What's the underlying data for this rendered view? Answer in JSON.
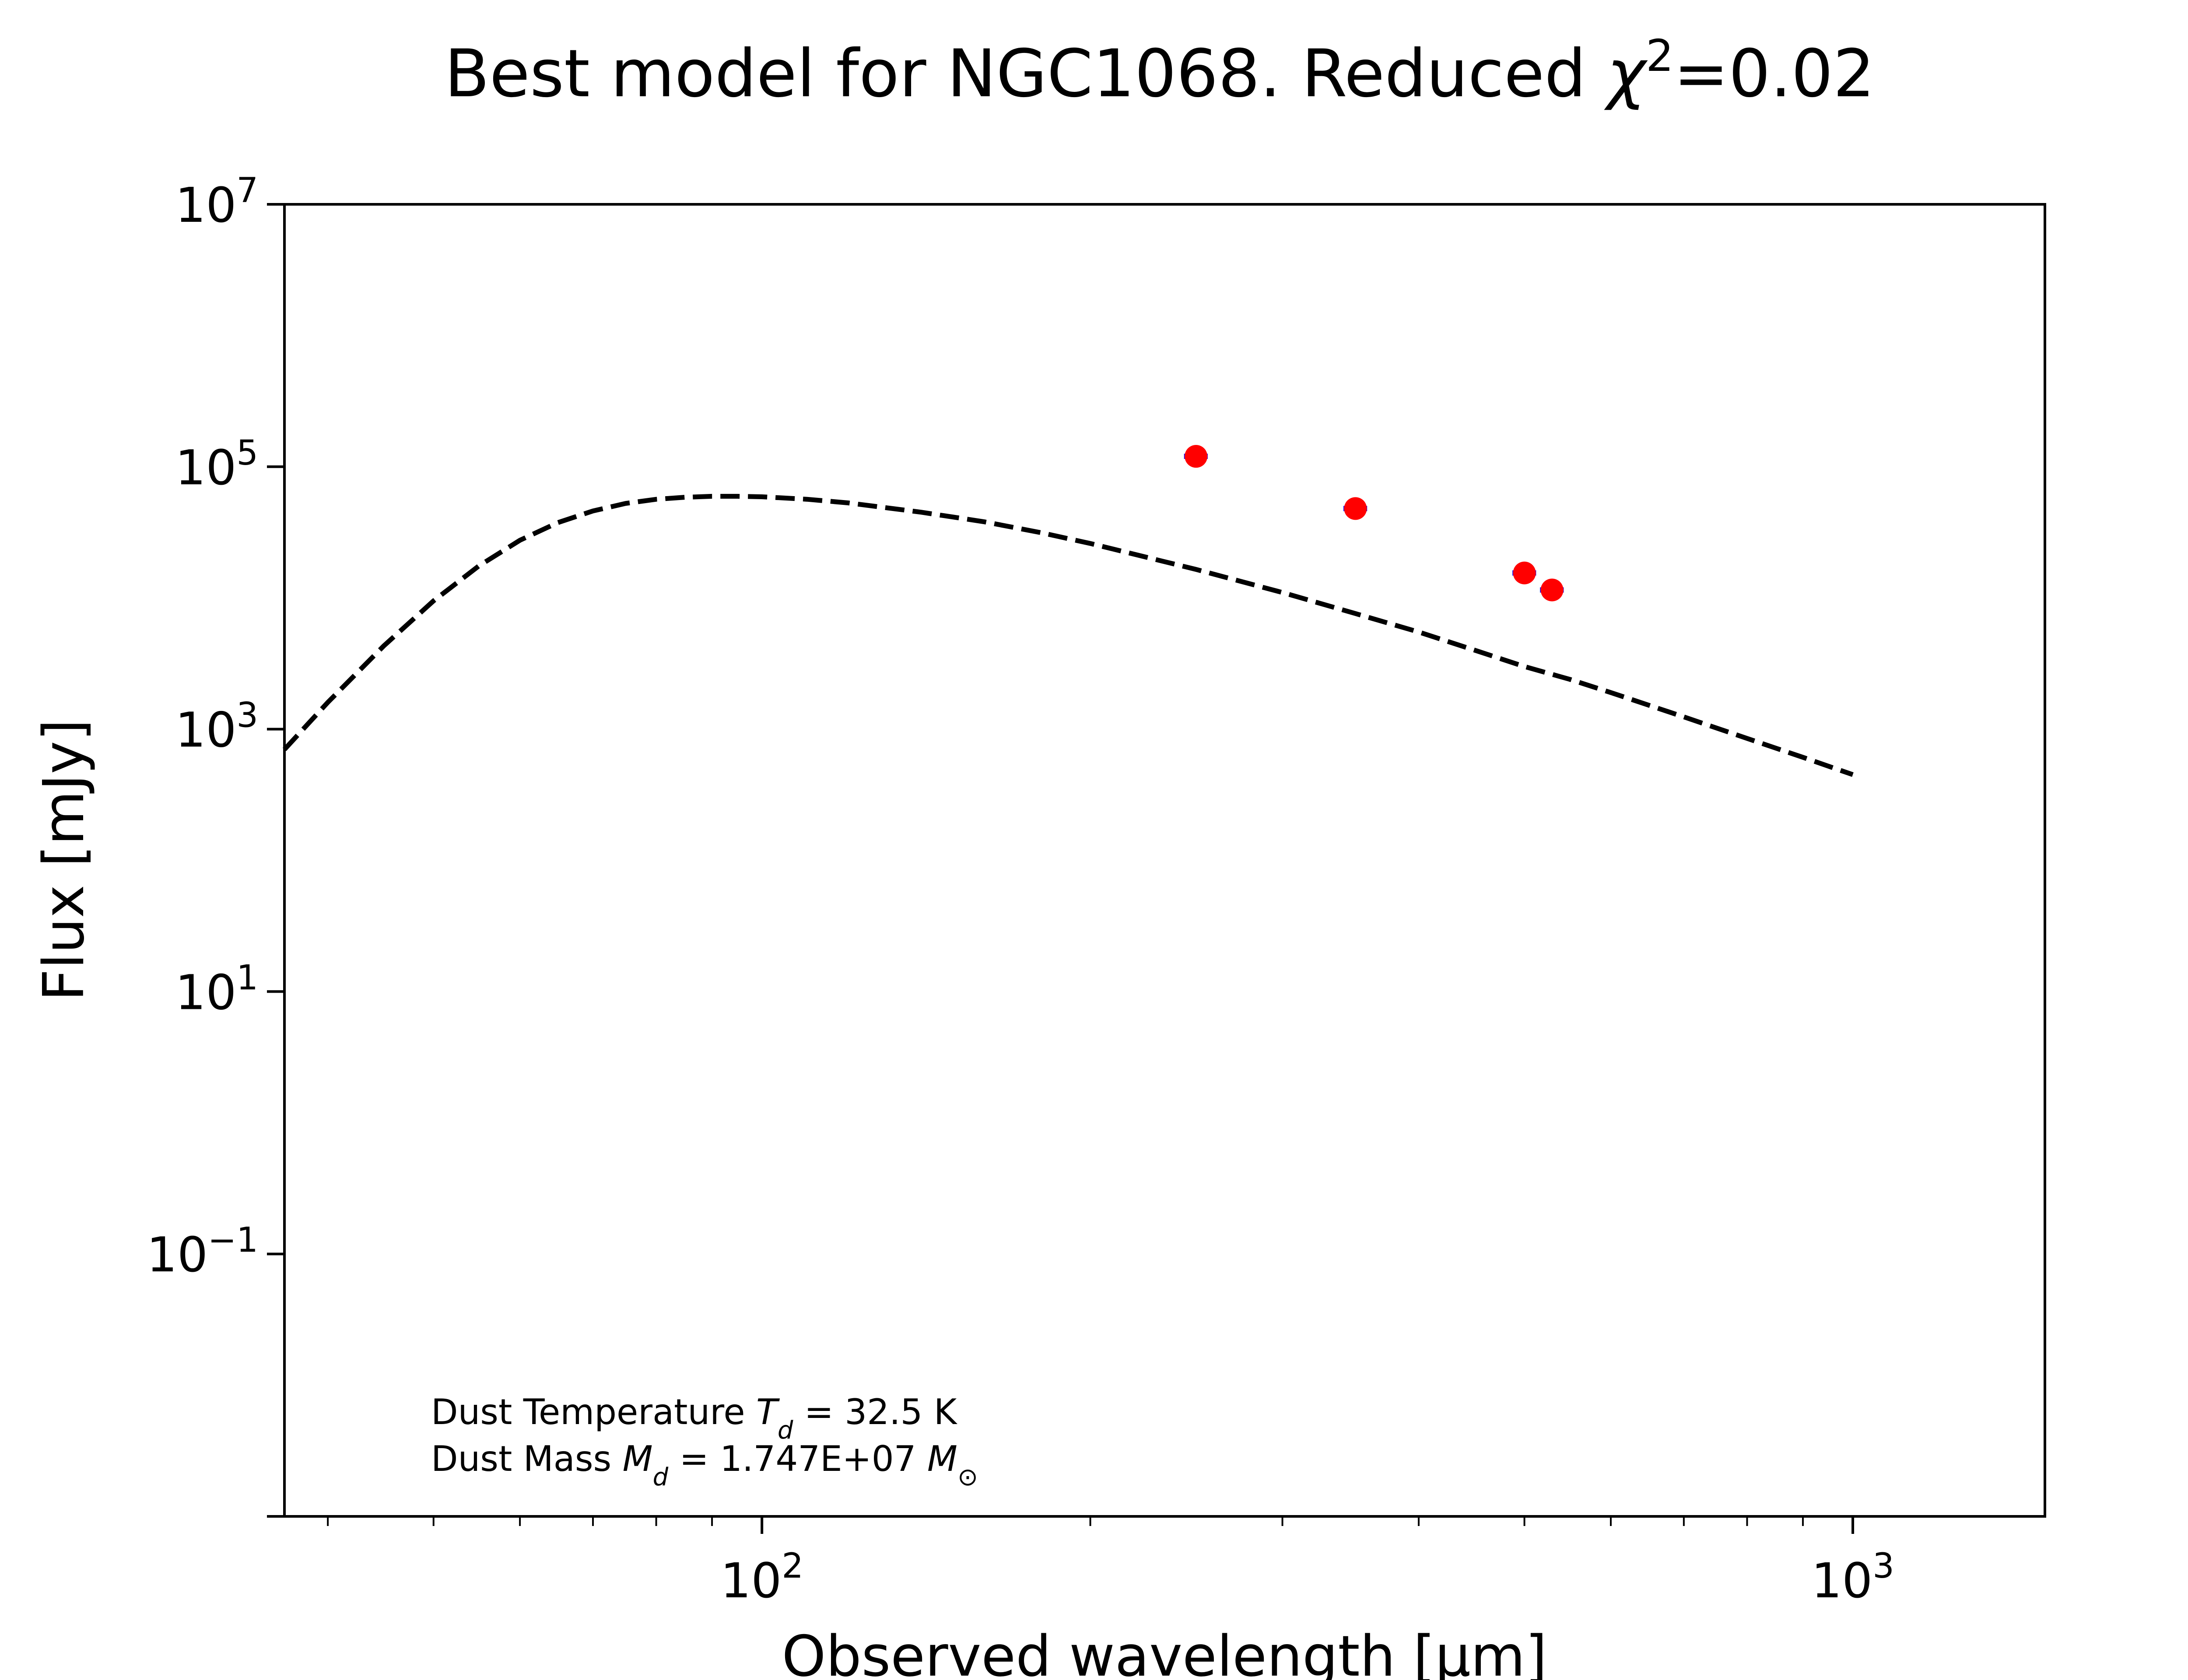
{
  "chart_data": {
    "type": "scatter",
    "title_prefix": "Best model for NGC1068. Reduced ",
    "title_chi": "χ",
    "title_exp": "2",
    "title_suffix": "=0.02",
    "xlabel": "Observed wavelength [μm]",
    "ylabel": "Flux [mJy]",
    "xscale": "log",
    "yscale": "log",
    "xlim": [
      36.5,
      1500
    ],
    "ylim": [
      0.001,
      10000000
    ],
    "xticks": [
      {
        "value": 100,
        "base": "10",
        "exp": "2"
      },
      {
        "value": 1000,
        "base": "10",
        "exp": "3"
      }
    ],
    "yticks": [
      {
        "value": 0.1,
        "base": "10",
        "exp": "−1"
      },
      {
        "value": 10,
        "base": "10",
        "exp": "1"
      },
      {
        "value": 1000,
        "base": "10",
        "exp": "3"
      },
      {
        "value": 100000,
        "base": "10",
        "exp": "5"
      },
      {
        "value": 10000000,
        "base": "10",
        "exp": "7"
      }
    ],
    "grid": false,
    "series": [
      {
        "type": "line",
        "style": "dashed",
        "color": "#000000",
        "x": [
          36.5,
          40,
          45,
          50,
          55,
          60,
          65,
          70,
          75,
          80,
          85,
          90,
          95,
          100,
          110,
          120,
          140,
          160,
          180,
          200,
          250,
          300,
          350,
          400,
          450,
          500,
          550,
          600,
          700,
          800,
          900,
          1000
        ],
        "y": [
          700,
          1600,
          4300,
          9500,
          17500,
          27500,
          37500,
          46000,
          52500,
          56500,
          58500,
          59500,
          59500,
          59000,
          56500,
          53000,
          45000,
          38000,
          31500,
          26000,
          16500,
          11000,
          7600,
          5500,
          4000,
          3000,
          2400,
          1900,
          1240,
          850,
          610,
          450
        ]
      },
      {
        "type": "scatter",
        "marker_color": "#ff0000",
        "errorbar_color": "#0000ff",
        "x": [
          250,
          350,
          500,
          530
        ],
        "y": [
          120000,
          48000,
          15500,
          11500
        ],
        "xerr_frac": 0.025
      }
    ],
    "annotations": {
      "line1_prefix": "Dust Temperature ",
      "line1_sym": "T",
      "line1_sub": "d",
      "line1_suffix": " = 32.5 K",
      "line2_prefix": "Dust Mass ",
      "line2_sym": "M",
      "line2_sub": "d",
      "line2_mid": " = 1.747E+07 ",
      "line2_sym2": "M",
      "line2_sub2": "⊙"
    }
  }
}
